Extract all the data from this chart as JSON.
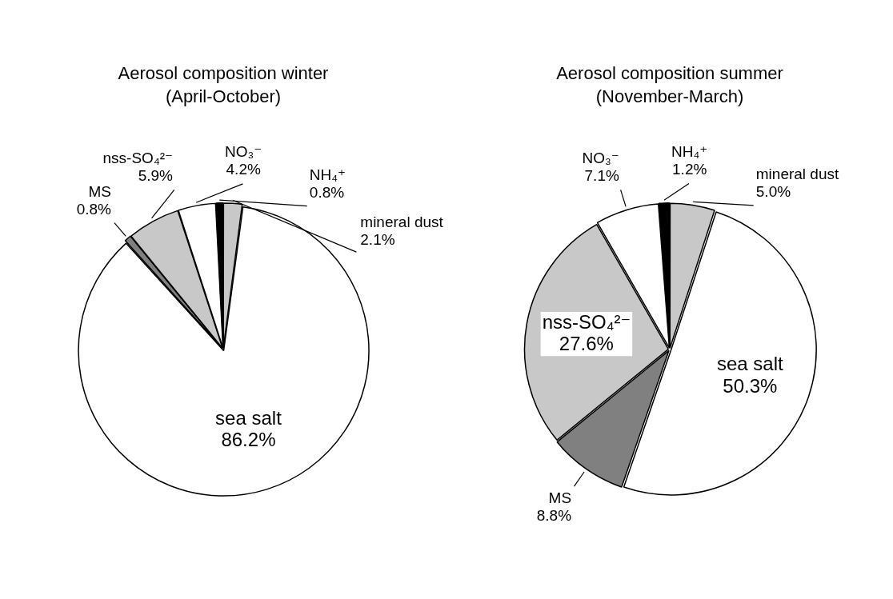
{
  "chart_data": [
    {
      "type": "pie",
      "title": "Aerosol composition winter",
      "subtitle": "(April-October)",
      "legend": false,
      "categories": [
        "mineral dust",
        "sea salt",
        "MS",
        "nss-SO₄²⁻",
        "NO₃⁻",
        "NH₄⁺"
      ],
      "values": [
        2.1,
        86.2,
        0.8,
        5.9,
        4.2,
        0.8
      ],
      "value_labels": [
        "2.1%",
        "86.2%",
        "0.8%",
        "5.9%",
        "4.2%",
        "0.8%"
      ],
      "colors": [
        "#c8c8c8",
        "#ffffff",
        "#808080",
        "#c8c8c8",
        "#ffffff",
        "#000000"
      ]
    },
    {
      "type": "pie",
      "title": "Aerosol composition summer",
      "subtitle": "(November-March)",
      "legend": false,
      "categories": [
        "mineral dust",
        "sea salt",
        "MS",
        "nss-SO₄²⁻",
        "NO₃⁻",
        "NH₄⁺"
      ],
      "values": [
        5.0,
        50.3,
        8.8,
        27.6,
        7.1,
        1.2
      ],
      "value_labels": [
        "5.0%",
        "50.3%",
        "8.8%",
        "27.6%",
        "7.1%",
        "1.2%"
      ],
      "colors": [
        "#c8c8c8",
        "#ffffff",
        "#808080",
        "#c8c8c8",
        "#ffffff",
        "#000000"
      ]
    }
  ]
}
